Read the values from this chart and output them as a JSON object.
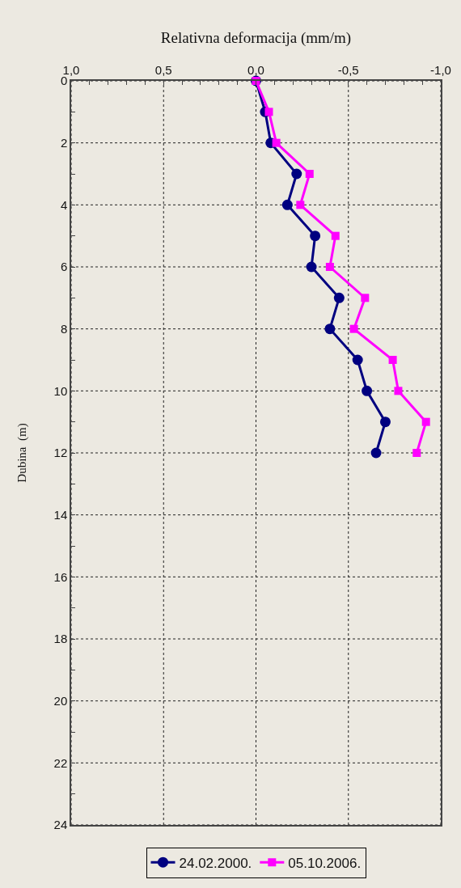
{
  "chart_data": {
    "type": "line",
    "xlabel": "Relativna deformacija (mm/m)",
    "ylabel": "Dubina  (m)",
    "xlim": [
      1,
      -1
    ],
    "xticks": [
      {
        "value": 1,
        "label": "1,0"
      },
      {
        "value": 0.9,
        "label": null
      },
      {
        "value": 0.8,
        "label": null
      },
      {
        "value": 0.7,
        "label": null
      },
      {
        "value": 0.6,
        "label": null
      },
      {
        "value": 0.5,
        "label": "0,5"
      },
      {
        "value": 0.4,
        "label": null
      },
      {
        "value": 0.3,
        "label": null
      },
      {
        "value": 0.2,
        "label": null
      },
      {
        "value": 0.1,
        "label": null
      },
      {
        "value": 0,
        "label": "0,0"
      },
      {
        "value": -0.1,
        "label": null
      },
      {
        "value": -0.2,
        "label": null
      },
      {
        "value": -0.3,
        "label": null
      },
      {
        "value": -0.4,
        "label": null
      },
      {
        "value": -0.5,
        "label": "-0,5"
      },
      {
        "value": -0.6,
        "label": null
      },
      {
        "value": -0.7,
        "label": null
      },
      {
        "value": -0.8,
        "label": null
      },
      {
        "value": -0.9,
        "label": null
      },
      {
        "value": -1,
        "label": "-1,0"
      }
    ],
    "ylim": [
      24,
      0
    ],
    "yticks": [
      0,
      {
        "value": 1,
        "label": null
      },
      2,
      {
        "value": 3,
        "label": null
      },
      4,
      {
        "value": 5,
        "label": null
      },
      6,
      {
        "value": 7,
        "label": null
      },
      8,
      {
        "value": 9,
        "label": null
      },
      10,
      {
        "value": 11,
        "label": null
      },
      12,
      {
        "value": 13,
        "label": null
      },
      14,
      {
        "value": 15,
        "label": null
      },
      16,
      {
        "value": 17,
        "label": null
      },
      18,
      {
        "value": 19,
        "label": null
      },
      20,
      {
        "value": 21,
        "label": null
      },
      22,
      {
        "value": 23,
        "label": null
      },
      24
    ],
    "grid": true,
    "legend": "bottom",
    "line_style": "solid",
    "series": [
      {
        "name": "24.02.2000.",
        "color": "#000080",
        "marker": "circle",
        "x": [
          0,
          -0.05,
          -0.08,
          -0.22,
          -0.17,
          -0.32,
          -0.3,
          -0.45,
          -0.4,
          -0.55,
          -0.6,
          -0.7,
          -0.65
        ],
        "values": [
          0,
          1,
          2,
          3,
          4,
          5,
          6,
          7,
          8,
          9,
          10,
          11,
          12
        ]
      },
      {
        "name": "05.10.2006.",
        "color": "#ff00ff",
        "marker": "square",
        "x": [
          0,
          -0.07,
          -0.11,
          -0.29,
          -0.24,
          -0.43,
          -0.4,
          -0.59,
          -0.53,
          -0.74,
          -0.77,
          -0.92,
          -0.87
        ],
        "values": [
          0,
          1,
          2,
          3,
          4,
          5,
          6,
          7,
          8,
          9,
          10,
          11,
          12
        ]
      }
    ]
  }
}
